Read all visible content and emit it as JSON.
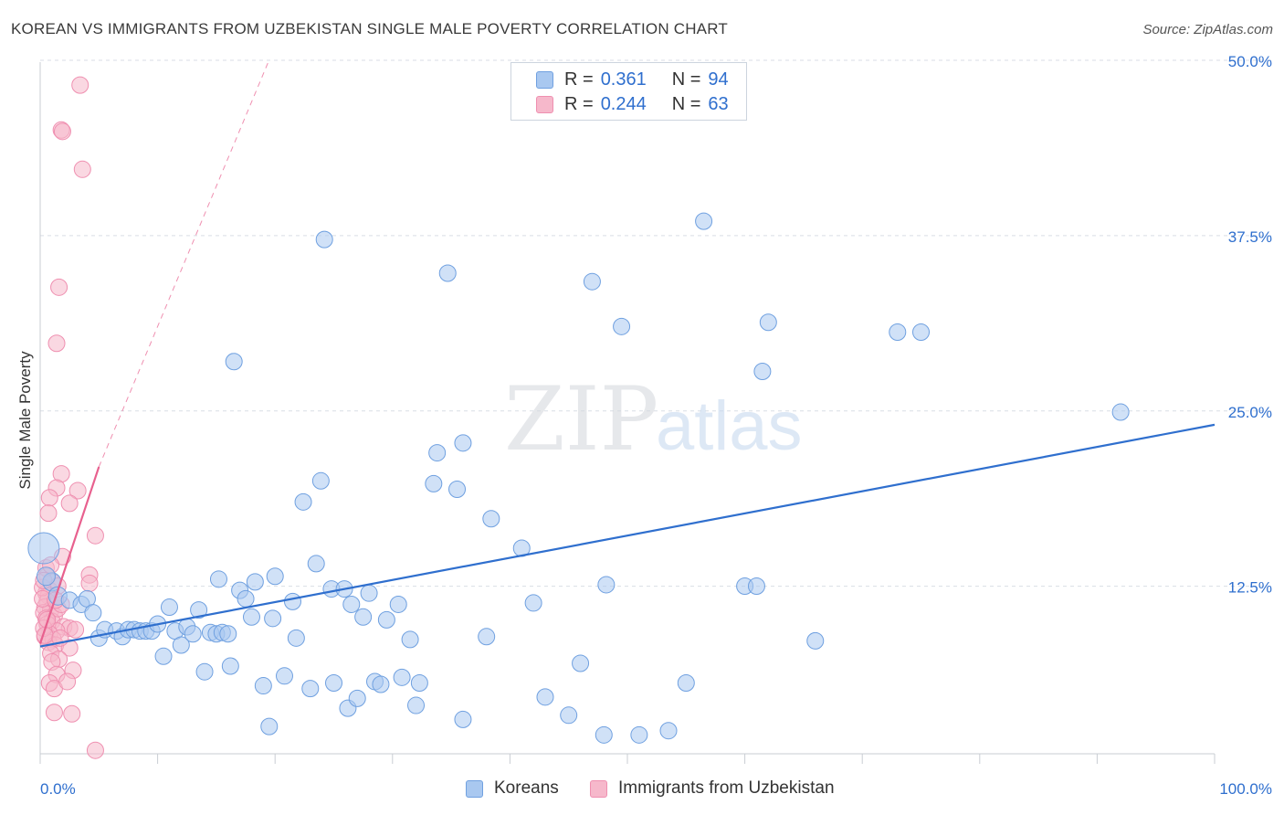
{
  "title": "KOREAN VS IMMIGRANTS FROM UZBEKISTAN SINGLE MALE POVERTY CORRELATION CHART",
  "source": "Source: ZipAtlas.com",
  "watermark": {
    "zip": "ZIP",
    "atlas": "atlas"
  },
  "legend_top": [
    {
      "r_label": "R =",
      "r_value": "0.361",
      "n_label": "N =",
      "n_value": "94",
      "color": "#a9c8f0"
    },
    {
      "r_label": "R =",
      "r_value": "0.244",
      "n_label": "N =",
      "n_value": "63",
      "color": "#f6b8cb"
    }
  ],
  "legend_bottom": [
    {
      "label": "Koreans",
      "color": "#a9c8f0"
    },
    {
      "label": "Immigrants from Uzbekistan",
      "color": "#f6b8cb"
    }
  ],
  "colors": {
    "blue_fill": "#a9c8f0",
    "blue_line": "#2f6fce",
    "pink_fill": "#f6b8cb",
    "pink_line": "#e8608e",
    "tick_label": "#2f6fce",
    "grid": "#d9dee5"
  },
  "chart_data": {
    "type": "scatter",
    "title": "KOREAN VS IMMIGRANTS FROM UZBEKISTAN SINGLE MALE POVERTY CORRELATION CHART",
    "xlabel": "",
    "ylabel": "Single Male Poverty",
    "xlim": [
      0,
      100
    ],
    "ylim": [
      0,
      52
    ],
    "x_tick_labels": [
      "0.0%",
      "100.0%"
    ],
    "y_ticks": [
      12.5,
      25.0,
      37.5,
      50.0
    ],
    "y_tick_labels": [
      "12.5%",
      "25.0%",
      "37.5%",
      "50.0%"
    ],
    "grid": "horizontal dashed",
    "series": [
      {
        "name": "Koreans",
        "color": "#a9c8f0",
        "trend": {
          "x": [
            0,
            100
          ],
          "y": [
            8.2,
            24.0
          ]
        },
        "points": [
          [
            0.3,
            15.2,
            17
          ],
          [
            1.0,
            12.8,
            10
          ],
          [
            0.5,
            13.2,
            10
          ],
          [
            1.5,
            11.8,
            10
          ],
          [
            2.5,
            11.5,
            9
          ],
          [
            3.5,
            11.2,
            9
          ],
          [
            4.0,
            11.6,
            9
          ],
          [
            4.5,
            10.6,
            9
          ],
          [
            5.0,
            8.8,
            9
          ],
          [
            5.5,
            9.4,
            9
          ],
          [
            6.5,
            9.3,
            9
          ],
          [
            7.0,
            8.9,
            9
          ],
          [
            7.5,
            9.4,
            9
          ],
          [
            8.0,
            9.4,
            9
          ],
          [
            8.5,
            9.3,
            9
          ],
          [
            9.0,
            9.3,
            9
          ],
          [
            9.5,
            9.3,
            9
          ],
          [
            10.0,
            9.8,
            9
          ],
          [
            10.5,
            7.5,
            9
          ],
          [
            11.0,
            11.0,
            9
          ],
          [
            11.5,
            9.3,
            9
          ],
          [
            12.0,
            8.3,
            9
          ],
          [
            12.5,
            9.6,
            9
          ],
          [
            13.0,
            9.1,
            9
          ],
          [
            13.5,
            10.8,
            9
          ],
          [
            14.0,
            6.4,
            9
          ],
          [
            14.5,
            9.2,
            9
          ],
          [
            15.0,
            9.1,
            9
          ],
          [
            15.5,
            9.2,
            9
          ],
          [
            15.2,
            13.0,
            9
          ],
          [
            16.0,
            9.1,
            9
          ],
          [
            16.2,
            6.8,
            9
          ],
          [
            16.5,
            28.5,
            9
          ],
          [
            17.0,
            12.2,
            9
          ],
          [
            17.5,
            11.6,
            9
          ],
          [
            18.0,
            10.3,
            9
          ],
          [
            18.3,
            12.8,
            9
          ],
          [
            19.0,
            5.4,
            9
          ],
          [
            19.5,
            2.5,
            9
          ],
          [
            19.8,
            10.2,
            9
          ],
          [
            20.0,
            13.2,
            9
          ],
          [
            20.8,
            6.1,
            9
          ],
          [
            21.5,
            11.4,
            9
          ],
          [
            21.8,
            8.8,
            9
          ],
          [
            22.4,
            18.5,
            9
          ],
          [
            23.0,
            5.2,
            9
          ],
          [
            23.5,
            14.1,
            9
          ],
          [
            23.9,
            20.0,
            9
          ],
          [
            24.2,
            37.2,
            9
          ],
          [
            24.8,
            12.3,
            9
          ],
          [
            25.0,
            5.6,
            9
          ],
          [
            25.9,
            12.3,
            9
          ],
          [
            26.2,
            3.8,
            9
          ],
          [
            26.5,
            11.2,
            9
          ],
          [
            27.0,
            4.5,
            9
          ],
          [
            27.5,
            10.3,
            9
          ],
          [
            28.0,
            12.0,
            9
          ],
          [
            28.5,
            5.7,
            9
          ],
          [
            29.0,
            5.5,
            9
          ],
          [
            29.5,
            10.1,
            9
          ],
          [
            30.5,
            11.2,
            9
          ],
          [
            30.8,
            6.0,
            9
          ],
          [
            31.5,
            8.7,
            9
          ],
          [
            32.0,
            4.0,
            9
          ],
          [
            32.3,
            5.6,
            9
          ],
          [
            33.5,
            19.8,
            9
          ],
          [
            33.8,
            22.0,
            9
          ],
          [
            34.7,
            34.8,
            9
          ],
          [
            35.5,
            19.4,
            9
          ],
          [
            36.0,
            22.7,
            9
          ],
          [
            36.0,
            3.0,
            9
          ],
          [
            38.0,
            8.9,
            9
          ],
          [
            38.4,
            17.3,
            9
          ],
          [
            41.0,
            15.2,
            9
          ],
          [
            42.0,
            11.3,
            9
          ],
          [
            43.0,
            4.6,
            9
          ],
          [
            45.0,
            3.3,
            9
          ],
          [
            46.0,
            7.0,
            9
          ],
          [
            47.0,
            34.2,
            9
          ],
          [
            48.0,
            1.9,
            9
          ],
          [
            48.2,
            12.6,
            9
          ],
          [
            49.5,
            31.0,
            9
          ],
          [
            51.0,
            1.9,
            9
          ],
          [
            53.5,
            2.2,
            9
          ],
          [
            55.0,
            5.6,
            9
          ],
          [
            56.5,
            38.5,
            9
          ],
          [
            60.0,
            12.5,
            9
          ],
          [
            61.0,
            12.5,
            9
          ],
          [
            61.5,
            27.8,
            9
          ],
          [
            62.0,
            31.3,
            9
          ],
          [
            66.0,
            8.6,
            9
          ],
          [
            73.0,
            30.6,
            9
          ],
          [
            75.0,
            30.6,
            9
          ],
          [
            92.0,
            24.9,
            9
          ]
        ]
      },
      {
        "name": "Immigrants from Uzbekistan",
        "color": "#f6b8cb",
        "trend": {
          "x": [
            0,
            5
          ],
          "y": [
            8.4,
            21.0
          ]
        },
        "trend_extension": {
          "x": [
            5,
            19.5
          ],
          "y": [
            21.0,
            50.0
          ]
        },
        "points": [
          [
            3.4,
            48.2,
            9
          ],
          [
            1.8,
            45.0,
            9
          ],
          [
            1.9,
            44.9,
            9
          ],
          [
            3.6,
            42.2,
            9
          ],
          [
            1.6,
            33.8,
            9
          ],
          [
            1.4,
            29.8,
            9
          ],
          [
            1.8,
            20.5,
            9
          ],
          [
            1.4,
            19.5,
            9
          ],
          [
            0.8,
            18.8,
            9
          ],
          [
            3.2,
            19.3,
            9
          ],
          [
            2.5,
            18.4,
            9
          ],
          [
            0.7,
            17.7,
            9
          ],
          [
            4.7,
            16.1,
            9
          ],
          [
            1.9,
            14.6,
            9
          ],
          [
            4.2,
            13.3,
            9
          ],
          [
            0.6,
            13.2,
            9
          ],
          [
            1.0,
            12.8,
            9
          ],
          [
            0.8,
            12.2,
            9
          ],
          [
            1.5,
            12.5,
            9
          ],
          [
            4.2,
            12.7,
            9
          ],
          [
            0.5,
            12.0,
            9
          ],
          [
            0.7,
            11.8,
            9
          ],
          [
            0.6,
            11.4,
            9
          ],
          [
            0.4,
            11.0,
            9
          ],
          [
            0.9,
            10.8,
            9
          ],
          [
            0.3,
            10.6,
            9
          ],
          [
            1.2,
            10.4,
            9
          ],
          [
            0.5,
            10.2,
            9
          ],
          [
            1.0,
            10.0,
            9
          ],
          [
            0.6,
            9.8,
            9
          ],
          [
            2.0,
            9.6,
            9
          ],
          [
            2.5,
            9.5,
            9
          ],
          [
            3.0,
            9.4,
            9
          ],
          [
            1.4,
            9.3,
            9
          ],
          [
            0.8,
            9.1,
            9
          ],
          [
            0.4,
            8.9,
            9
          ],
          [
            1.1,
            8.7,
            9
          ],
          [
            0.7,
            8.5,
            9
          ],
          [
            1.3,
            8.3,
            9
          ],
          [
            2.5,
            8.1,
            9
          ],
          [
            0.9,
            7.7,
            9
          ],
          [
            1.6,
            7.3,
            9
          ],
          [
            1.0,
            7.1,
            9
          ],
          [
            2.8,
            6.5,
            9
          ],
          [
            1.4,
            6.2,
            9
          ],
          [
            0.8,
            5.6,
            9
          ],
          [
            1.2,
            5.2,
            9
          ],
          [
            2.3,
            5.7,
            9
          ],
          [
            1.2,
            3.5,
            9
          ],
          [
            2.7,
            3.4,
            9
          ],
          [
            4.7,
            0.8,
            9
          ],
          [
            0.5,
            13.8,
            9
          ],
          [
            1.5,
            10.9,
            9
          ],
          [
            0.3,
            9.5,
            9
          ],
          [
            0.2,
            12.4,
            9
          ],
          [
            0.9,
            14.0,
            9
          ],
          [
            0.2,
            11.6,
            9
          ],
          [
            1.8,
            11.2,
            9
          ],
          [
            0.6,
            10.1,
            9
          ],
          [
            1.3,
            11.5,
            9
          ],
          [
            0.4,
            9.0,
            9
          ],
          [
            1.7,
            8.8,
            9
          ],
          [
            0.3,
            12.9,
            9
          ]
        ]
      }
    ]
  }
}
